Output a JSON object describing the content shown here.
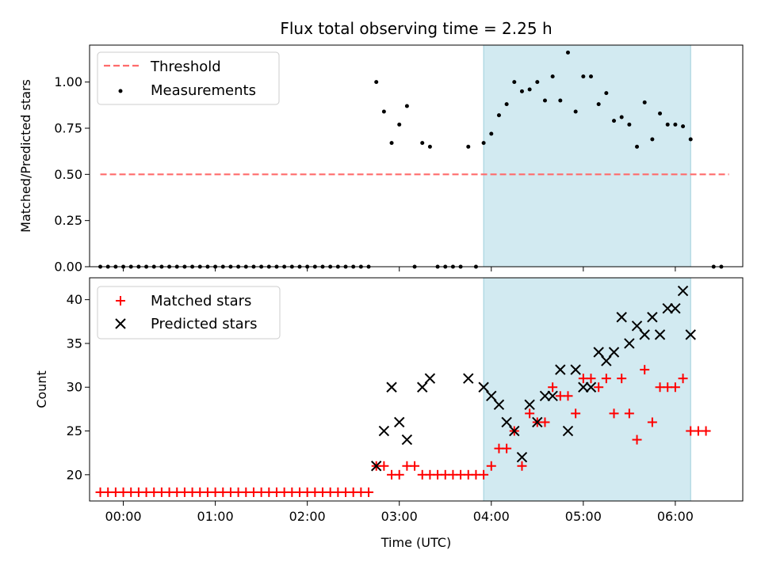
{
  "chart_data": [
    {
      "type": "scatter",
      "title": "Flux total observing time = 2.25 h",
      "xlabel": "",
      "ylabel": "Matched/Predicted stars",
      "ylim": [
        0,
        1.2
      ],
      "xlim": [
        "23:38",
        "06:44"
      ],
      "yticks": [
        "0.00",
        "0.25",
        "0.50",
        "0.75",
        "1.00"
      ],
      "grid": false,
      "legend_position": "upper-left",
      "observing_window": {
        "start": "03:55",
        "end": "06:10",
        "color": "#add8e6"
      },
      "threshold": {
        "name": "Threshold",
        "value": 0.5,
        "from": "23:45",
        "to": "06:35",
        "color": "#ff6b6b"
      },
      "series": [
        {
          "name": "Measurements",
          "color": "#000000",
          "marker": "dot",
          "points": [
            [
              "23:45",
              0
            ],
            [
              "23:50",
              0
            ],
            [
              "23:55",
              0
            ],
            [
              "00:00",
              0
            ],
            [
              "00:05",
              0
            ],
            [
              "00:10",
              0
            ],
            [
              "00:15",
              0
            ],
            [
              "00:20",
              0
            ],
            [
              "00:25",
              0
            ],
            [
              "00:30",
              0
            ],
            [
              "00:35",
              0
            ],
            [
              "00:40",
              0
            ],
            [
              "00:45",
              0
            ],
            [
              "00:50",
              0
            ],
            [
              "00:55",
              0
            ],
            [
              "01:00",
              0
            ],
            [
              "01:05",
              0
            ],
            [
              "01:10",
              0
            ],
            [
              "01:15",
              0
            ],
            [
              "01:20",
              0
            ],
            [
              "01:25",
              0
            ],
            [
              "01:30",
              0
            ],
            [
              "01:35",
              0
            ],
            [
              "01:40",
              0
            ],
            [
              "01:45",
              0
            ],
            [
              "01:50",
              0
            ],
            [
              "01:55",
              0
            ],
            [
              "02:00",
              0
            ],
            [
              "02:05",
              0
            ],
            [
              "02:10",
              0
            ],
            [
              "02:15",
              0
            ],
            [
              "02:20",
              0
            ],
            [
              "02:25",
              0
            ],
            [
              "02:30",
              0
            ],
            [
              "02:35",
              0
            ],
            [
              "02:40",
              0
            ],
            [
              "02:45",
              1.0
            ],
            [
              "02:50",
              0.84
            ],
            [
              "02:55",
              0.67
            ],
            [
              "03:00",
              0.77
            ],
            [
              "03:05",
              0.87
            ],
            [
              "03:10",
              0
            ],
            [
              "03:15",
              0.67
            ],
            [
              "03:20",
              0.65
            ],
            [
              "03:25",
              0
            ],
            [
              "03:30",
              0
            ],
            [
              "03:35",
              0
            ],
            [
              "03:40",
              0
            ],
            [
              "03:45",
              0.65
            ],
            [
              "03:50",
              0
            ],
            [
              "03:55",
              0.67
            ],
            [
              "04:00",
              0.72
            ],
            [
              "04:05",
              0.82
            ],
            [
              "04:10",
              0.88
            ],
            [
              "04:15",
              1.0
            ],
            [
              "04:20",
              0.95
            ],
            [
              "04:25",
              0.96
            ],
            [
              "04:30",
              1.0
            ],
            [
              "04:35",
              0.9
            ],
            [
              "04:40",
              1.03
            ],
            [
              "04:45",
              0.9
            ],
            [
              "04:50",
              1.16
            ],
            [
              "04:55",
              0.84
            ],
            [
              "05:00",
              1.03
            ],
            [
              "05:05",
              1.03
            ],
            [
              "05:10",
              0.88
            ],
            [
              "05:15",
              0.94
            ],
            [
              "05:20",
              0.79
            ],
            [
              "05:25",
              0.81
            ],
            [
              "05:30",
              0.77
            ],
            [
              "05:35",
              0.65
            ],
            [
              "05:40",
              0.89
            ],
            [
              "05:45",
              0.69
            ],
            [
              "05:50",
              0.83
            ],
            [
              "05:55",
              0.77
            ],
            [
              "06:00",
              0.77
            ],
            [
              "06:05",
              0.76
            ],
            [
              "06:10",
              0.69
            ],
            [
              "06:25",
              0
            ],
            [
              "06:30",
              0
            ]
          ]
        }
      ]
    },
    {
      "type": "scatter",
      "title": "",
      "xlabel": "Time (UTC)",
      "ylabel": "Count",
      "ylim": [
        17,
        42.5
      ],
      "xlim": [
        "23:38",
        "06:44"
      ],
      "xticks": [
        "00:00",
        "01:00",
        "02:00",
        "03:00",
        "04:00",
        "05:00",
        "06:00"
      ],
      "yticks": [
        "20",
        "25",
        "30",
        "35",
        "40"
      ],
      "grid": false,
      "legend_position": "upper-left",
      "observing_window": {
        "start": "03:55",
        "end": "06:10",
        "color": "#add8e6"
      },
      "series": [
        {
          "name": "Matched stars",
          "color": "#ff0000",
          "marker": "plus",
          "points": [
            [
              "23:45",
              18
            ],
            [
              "23:50",
              18
            ],
            [
              "23:55",
              18
            ],
            [
              "00:00",
              18
            ],
            [
              "00:05",
              18
            ],
            [
              "00:10",
              18
            ],
            [
              "00:15",
              18
            ],
            [
              "00:20",
              18
            ],
            [
              "00:25",
              18
            ],
            [
              "00:30",
              18
            ],
            [
              "00:35",
              18
            ],
            [
              "00:40",
              18
            ],
            [
              "00:45",
              18
            ],
            [
              "00:50",
              18
            ],
            [
              "00:55",
              18
            ],
            [
              "01:00",
              18
            ],
            [
              "01:05",
              18
            ],
            [
              "01:10",
              18
            ],
            [
              "01:15",
              18
            ],
            [
              "01:20",
              18
            ],
            [
              "01:25",
              18
            ],
            [
              "01:30",
              18
            ],
            [
              "01:35",
              18
            ],
            [
              "01:40",
              18
            ],
            [
              "01:45",
              18
            ],
            [
              "01:50",
              18
            ],
            [
              "01:55",
              18
            ],
            [
              "02:00",
              18
            ],
            [
              "02:05",
              18
            ],
            [
              "02:10",
              18
            ],
            [
              "02:15",
              18
            ],
            [
              "02:20",
              18
            ],
            [
              "02:25",
              18
            ],
            [
              "02:30",
              18
            ],
            [
              "02:35",
              18
            ],
            [
              "02:40",
              18
            ],
            [
              "02:45",
              21
            ],
            [
              "02:50",
              21
            ],
            [
              "02:55",
              20
            ],
            [
              "03:00",
              20
            ],
            [
              "03:05",
              21
            ],
            [
              "03:10",
              21
            ],
            [
              "03:15",
              20
            ],
            [
              "03:20",
              20
            ],
            [
              "03:25",
              20
            ],
            [
              "03:30",
              20
            ],
            [
              "03:35",
              20
            ],
            [
              "03:40",
              20
            ],
            [
              "03:45",
              20
            ],
            [
              "03:50",
              20
            ],
            [
              "03:55",
              20
            ],
            [
              "04:00",
              21
            ],
            [
              "04:05",
              23
            ],
            [
              "04:10",
              23
            ],
            [
              "04:15",
              25
            ],
            [
              "04:20",
              21
            ],
            [
              "04:25",
              27
            ],
            [
              "04:30",
              26
            ],
            [
              "04:35",
              26
            ],
            [
              "04:40",
              30
            ],
            [
              "04:45",
              29
            ],
            [
              "04:50",
              29
            ],
            [
              "04:55",
              27
            ],
            [
              "05:00",
              31
            ],
            [
              "05:05",
              31
            ],
            [
              "05:10",
              30
            ],
            [
              "05:15",
              31
            ],
            [
              "05:20",
              27
            ],
            [
              "05:25",
              31
            ],
            [
              "05:30",
              27
            ],
            [
              "05:35",
              24
            ],
            [
              "05:40",
              32
            ],
            [
              "05:45",
              26
            ],
            [
              "05:50",
              30
            ],
            [
              "05:55",
              30
            ],
            [
              "06:00",
              30
            ],
            [
              "06:05",
              31
            ],
            [
              "06:10",
              25
            ],
            [
              "06:15",
              25
            ],
            [
              "06:20",
              25
            ]
          ]
        },
        {
          "name": "Predicted stars",
          "color": "#000000",
          "marker": "x",
          "points": [
            [
              "02:45",
              21
            ],
            [
              "02:50",
              25
            ],
            [
              "02:55",
              30
            ],
            [
              "03:00",
              26
            ],
            [
              "03:05",
              24
            ],
            [
              "03:15",
              30
            ],
            [
              "03:20",
              31
            ],
            [
              "03:45",
              31
            ],
            [
              "03:55",
              30
            ],
            [
              "04:00",
              29
            ],
            [
              "04:05",
              28
            ],
            [
              "04:10",
              26
            ],
            [
              "04:15",
              25
            ],
            [
              "04:20",
              22
            ],
            [
              "04:25",
              28
            ],
            [
              "04:30",
              26
            ],
            [
              "04:35",
              29
            ],
            [
              "04:40",
              29
            ],
            [
              "04:45",
              32
            ],
            [
              "04:50",
              25
            ],
            [
              "04:55",
              32
            ],
            [
              "05:00",
              30
            ],
            [
              "05:05",
              30
            ],
            [
              "05:10",
              34
            ],
            [
              "05:15",
              33
            ],
            [
              "05:20",
              34
            ],
            [
              "05:25",
              38
            ],
            [
              "05:30",
              35
            ],
            [
              "05:35",
              37
            ],
            [
              "05:40",
              36
            ],
            [
              "05:45",
              38
            ],
            [
              "05:50",
              36
            ],
            [
              "05:55",
              39
            ],
            [
              "06:00",
              39
            ],
            [
              "06:05",
              41
            ],
            [
              "06:10",
              36
            ]
          ]
        }
      ]
    }
  ]
}
